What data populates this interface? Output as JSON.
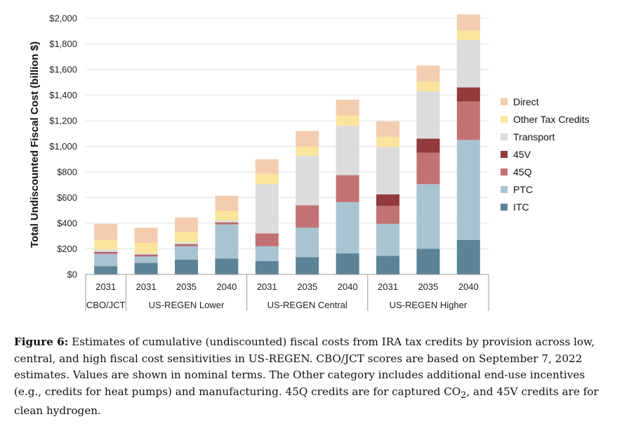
{
  "chart_data": {
    "type": "bar",
    "stacked": true,
    "ylabel": "Total Undiscounted Fiscal Cost (billion $)",
    "ylim": [
      0,
      2000
    ],
    "yticks": [
      0,
      200,
      400,
      600,
      800,
      1000,
      1200,
      1400,
      1600,
      1800,
      2000
    ],
    "ytick_labels": [
      "$0",
      "$200",
      "$400",
      "$600",
      "$800",
      "$1,000",
      "$1,200",
      "$1,400",
      "$1,600",
      "$1,800",
      "$2,000"
    ],
    "grid": true,
    "legend_position": "right",
    "categories": [
      "2031",
      "2031",
      "2035",
      "2040",
      "2031",
      "2035",
      "2040",
      "2031",
      "2035",
      "2040"
    ],
    "groups": [
      {
        "label": "CBO/JCT",
        "count": 1
      },
      {
        "label": "US-REGEN Lower",
        "count": 3
      },
      {
        "label": "US-REGEN Central",
        "count": 3
      },
      {
        "label": "US-REGEN Higher",
        "count": 3
      }
    ],
    "series": [
      {
        "name": "ITC",
        "color": "#5b8499",
        "values": [
          65,
          90,
          115,
          125,
          105,
          135,
          165,
          145,
          200,
          270
        ]
      },
      {
        "name": "PTC",
        "color": "#a9c4d1",
        "values": [
          95,
          50,
          105,
          265,
          115,
          230,
          400,
          250,
          505,
          780
        ]
      },
      {
        "name": "45Q",
        "color": "#c27274",
        "values": [
          10,
          10,
          10,
          10,
          100,
          175,
          210,
          140,
          245,
          300
        ]
      },
      {
        "name": "45V",
        "color": "#923a3c",
        "values": [
          5,
          5,
          5,
          5,
          0,
          0,
          0,
          90,
          110,
          110
        ]
      },
      {
        "name": "Transport",
        "color": "#dcdcdc",
        "values": [
          20,
          10,
          15,
          15,
          385,
          385,
          385,
          370,
          370,
          370
        ]
      },
      {
        "name": "Other Tax Credits",
        "color": "#fbe59d",
        "values": [
          75,
          80,
          80,
          75,
          80,
          75,
          80,
          80,
          75,
          75
        ]
      },
      {
        "name": "Direct",
        "color": "#f4cdb0",
        "values": [
          125,
          120,
          115,
          120,
          115,
          120,
          125,
          120,
          125,
          125
        ]
      }
    ]
  },
  "caption": {
    "label": "Figure 6:",
    "text_before_sub": "Estimates of cumulative (undiscounted) fiscal costs from IRA tax credits by provision across low, central, and high fiscal cost sensitivities in US-REGEN. CBO/JCT scores are based on September 7, 2022 estimates. Values are shown in nominal terms. The Other category includes additional end-use incentives (e.g., credits for heat pumps) and manufacturing. 45Q credits are for captured CO",
    "subscript": "2",
    "text_after_sub": ", and 45V credits are for clean hydrogen."
  }
}
